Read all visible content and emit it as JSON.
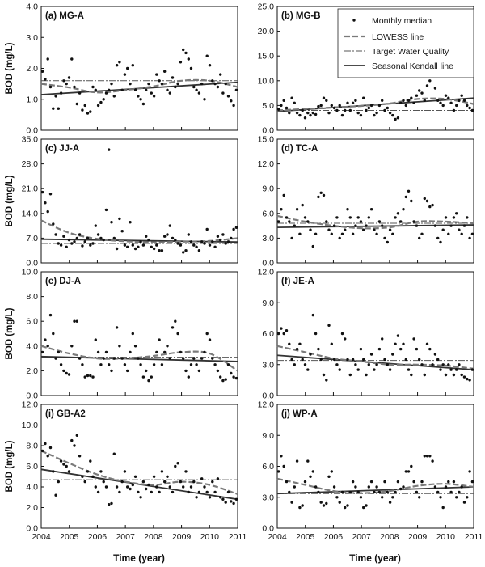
{
  "figure": {
    "xlabel": "Time (year)",
    "ylabel": "BOD (mg/L)",
    "legend": {
      "placement": "top-right of panel (b)",
      "entries": [
        "Monthly median",
        "LOWESS line",
        "Target Water Quality",
        "Seasonal Kendall line"
      ]
    },
    "colors": {
      "median": "#111111",
      "lowess": "#7a7a7a",
      "target": "#555555",
      "kendall": "#333333"
    }
  },
  "chart_data": [
    {
      "type": "scatter",
      "title": "(a) MG-A",
      "xlim": [
        2004,
        2011
      ],
      "ylim": [
        0,
        4
      ],
      "yticks": [
        "0.0",
        "1.0",
        "2.0",
        "3.0",
        "4.0"
      ],
      "xticks": [
        "2004",
        "2005",
        "2006",
        "2007",
        "2008",
        "2009",
        "2010",
        "2011"
      ],
      "target": 1.6,
      "kendall": [
        1.15,
        1.55
      ],
      "lowess": [
        [
          2004,
          1.5
        ],
        [
          2005,
          1.38
        ],
        [
          2006,
          1.22
        ],
        [
          2007,
          1.3
        ],
        [
          2008,
          1.42
        ],
        [
          2009,
          1.6
        ],
        [
          2010,
          1.6
        ],
        [
          2011,
          1.4
        ]
      ],
      "medians": [
        1.9,
        1.65,
        2.3,
        1.4,
        0.7,
        1.1,
        0.7,
        1.2,
        1.6,
        1.5,
        1.7,
        2.3,
        1.4,
        0.85,
        1.2,
        0.65,
        0.8,
        0.55,
        0.6,
        1.4,
        1.3,
        0.8,
        0.9,
        1.0,
        1.2,
        1.3,
        1.5,
        1.1,
        2.1,
        2.2,
        1.3,
        1.8,
        2.0,
        1.5,
        2.1,
        1.3,
        1.1,
        1.0,
        0.85,
        1.3,
        1.5,
        1.2,
        1.1,
        1.8,
        1.6,
        1.5,
        1.9,
        1.3,
        1.2,
        1.7,
        1.4,
        1.5,
        2.2,
        2.6,
        2.5,
        2.3,
        2.0,
        1.4,
        1.3,
        1.2,
        1.5,
        1.0,
        2.4,
        2.1,
        1.6,
        1.5,
        1.4,
        1.8,
        1.2,
        1.5,
        1.1,
        0.95,
        0.8,
        1.3
      ]
    },
    {
      "type": "scatter",
      "title": "(b) MG-B",
      "xlim": [
        2004,
        2011
      ],
      "ylim": [
        0,
        25
      ],
      "yticks": [
        "0.0",
        "5.0",
        "10.0",
        "15.0",
        "20.0",
        "25.0"
      ],
      "xticks": [
        "2004",
        "2005",
        "2006",
        "2007",
        "2008",
        "2009",
        "2010",
        "2011"
      ],
      "target": 4.0,
      "kendall": [
        3.8,
        6.5
      ],
      "lowess": [
        [
          2004,
          4.0
        ],
        [
          2005,
          4.3
        ],
        [
          2006,
          4.6
        ],
        [
          2007,
          4.9
        ],
        [
          2008,
          5.4
        ],
        [
          2009,
          6.3
        ],
        [
          2010,
          6.3
        ],
        [
          2011,
          5.3
        ]
      ],
      "medians": [
        4.2,
        5.0,
        6.0,
        4.5,
        3.5,
        6.5,
        5.5,
        3.5,
        3.0,
        4.0,
        2.5,
        3.5,
        3.0,
        3.5,
        3.2,
        4.8,
        5.0,
        6.5,
        6.0,
        3.5,
        5.0,
        4.5,
        4.0,
        5.0,
        3.0,
        4.0,
        5.5,
        4.0,
        5.5,
        6.0,
        3.5,
        3.0,
        6.5,
        4.0,
        4.5,
        5.0,
        3.0,
        3.5,
        5.0,
        6.0,
        4.0,
        4.5,
        3.5,
        3.0,
        2.2,
        2.5,
        5.5,
        6.0,
        5.0,
        6.0,
        6.5,
        5.5,
        7.0,
        8.0,
        7.5,
        6.0,
        9.0,
        10.0,
        11.5,
        8.5,
        6.0,
        5.5,
        5.0,
        7.0,
        6.5,
        5.5,
        4.0,
        5.0,
        6.0,
        7.0,
        6.0,
        5.0,
        4.5,
        4.0
      ]
    },
    {
      "type": "scatter",
      "title": "(c) JJ-A",
      "xlim": [
        2004,
        2011
      ],
      "ylim": [
        0,
        35
      ],
      "yticks": [
        "0.0",
        "7.0",
        "14.0",
        "21.0",
        "28.0",
        "35.0"
      ],
      "xticks": [
        "2004",
        "2005",
        "2006",
        "2007",
        "2008",
        "2009",
        "2010",
        "2011"
      ],
      "target": 5.5,
      "kendall": [
        6.7,
        5.9
      ],
      "lowess": [
        [
          2004,
          12.0
        ],
        [
          2005,
          8.5
        ],
        [
          2006,
          6.8
        ],
        [
          2007,
          6.1
        ],
        [
          2008,
          5.8
        ],
        [
          2009,
          6.0
        ],
        [
          2010,
          6.2
        ],
        [
          2011,
          7.0
        ]
      ],
      "medians": [
        20.0,
        17.0,
        14.5,
        19.5,
        11.0,
        8.0,
        5.5,
        5.0,
        7.5,
        4.5,
        6.5,
        5.5,
        6.0,
        7.0,
        8.0,
        4.8,
        6.0,
        7.0,
        5.0,
        5.5,
        10.5,
        8.0,
        7.0,
        6.5,
        15.0,
        32.0,
        11.5,
        7.0,
        4.0,
        12.5,
        9.0,
        5.0,
        4.5,
        11.5,
        5.0,
        4.0,
        4.5,
        6.0,
        5.0,
        7.5,
        6.5,
        4.5,
        4.0,
        5.0,
        3.5,
        3.5,
        7.5,
        8.0,
        10.5,
        7.0,
        6.5,
        5.5,
        5.0,
        3.0,
        3.5,
        8.0,
        6.0,
        5.0,
        4.5,
        3.5,
        6.0,
        5.5,
        9.5,
        5.0,
        6.0,
        4.5,
        7.5,
        6.5,
        8.0,
        5.5,
        6.0,
        7.0,
        9.5,
        10.0
      ]
    },
    {
      "type": "scatter",
      "title": "(d) TC-A",
      "xlim": [
        2004,
        2011
      ],
      "ylim": [
        0,
        15
      ],
      "yticks": [
        "0.0",
        "3.0",
        "6.0",
        "9.0",
        "12.0",
        "15.0"
      ],
      "xticks": [
        "2004",
        "2005",
        "2006",
        "2007",
        "2008",
        "2009",
        "2010",
        "2011"
      ],
      "target": 4.8,
      "kendall": [
        4.3,
        4.6
      ],
      "lowess": [
        [
          2004,
          5.7
        ],
        [
          2005,
          5.0
        ],
        [
          2006,
          4.5
        ],
        [
          2007,
          4.2
        ],
        [
          2008,
          4.3
        ],
        [
          2009,
          5.0
        ],
        [
          2010,
          5.0
        ],
        [
          2011,
          4.8
        ]
      ],
      "medians": [
        5.0,
        6.5,
        8.2,
        5.5,
        5.0,
        3.0,
        4.5,
        6.5,
        3.5,
        7.0,
        5.5,
        5.0,
        4.0,
        2.0,
        3.5,
        8.0,
        8.5,
        8.2,
        5.0,
        4.0,
        3.5,
        4.5,
        5.5,
        3.0,
        3.5,
        4.0,
        6.5,
        5.5,
        3.5,
        4.5,
        5.5,
        5.0,
        4.0,
        4.5,
        5.5,
        6.5,
        4.0,
        3.5,
        5.0,
        4.5,
        3.0,
        2.5,
        4.0,
        3.5,
        5.5,
        6.0,
        5.0,
        6.5,
        8.0,
        8.7,
        7.5,
        5.0,
        4.5,
        3.0,
        3.5,
        7.8,
        7.5,
        6.8,
        7.0,
        4.5,
        3.0,
        2.5,
        4.0,
        5.5,
        3.5,
        4.5,
        5.5,
        6.0,
        4.0,
        3.5,
        4.5,
        5.5,
        3.0,
        3.5
      ]
    },
    {
      "type": "scatter",
      "title": "(e) DJ-A",
      "xlim": [
        2004,
        2011
      ],
      "ylim": [
        0,
        10
      ],
      "yticks": [
        "0.0",
        "2.0",
        "4.0",
        "6.0",
        "8.0",
        "10.0"
      ],
      "xticks": [
        "2004",
        "2005",
        "2006",
        "2007",
        "2008",
        "2009",
        "2010",
        "2011"
      ],
      "target": 3.1,
      "kendall": [
        3.15,
        2.75
      ],
      "lowess": [
        [
          2004,
          4.0
        ],
        [
          2005,
          3.4
        ],
        [
          2006,
          3.0
        ],
        [
          2007,
          3.0
        ],
        [
          2008,
          3.2
        ],
        [
          2009,
          3.5
        ],
        [
          2010,
          3.4
        ],
        [
          2011,
          2.0
        ]
      ],
      "medians": [
        3.5,
        4.5,
        4.0,
        6.5,
        5.0,
        3.0,
        3.5,
        2.5,
        2.0,
        1.8,
        1.7,
        4.0,
        6.0,
        6.0,
        3.0,
        2.5,
        1.5,
        1.6,
        1.6,
        1.5,
        4.5,
        3.5,
        2.5,
        3.0,
        3.5,
        2.5,
        2.0,
        3.0,
        5.5,
        4.0,
        3.0,
        2.5,
        2.0,
        3.5,
        5.0,
        4.0,
        3.0,
        2.5,
        1.5,
        2.0,
        1.2,
        1.5,
        2.5,
        3.5,
        4.5,
        2.5,
        3.5,
        4.0,
        3.0,
        5.5,
        6.0,
        5.0,
        3.5,
        3.0,
        2.0,
        1.5,
        2.5,
        3.0,
        2.5,
        2.0,
        3.0,
        3.5,
        5.0,
        4.5,
        3.0,
        2.5,
        2.0,
        1.5,
        1.2,
        1.3,
        2.5,
        1.8,
        1.5,
        1.4
      ]
    },
    {
      "type": "scatter",
      "title": "(f) JE-A",
      "xlim": [
        2004,
        2011
      ],
      "ylim": [
        0,
        12
      ],
      "yticks": [
        "0.0",
        "3.0",
        "6.0",
        "9.0",
        "12.0"
      ],
      "xticks": [
        "2004",
        "2005",
        "2006",
        "2007",
        "2008",
        "2009",
        "2010",
        "2011"
      ],
      "target": 3.4,
      "kendall": [
        3.9,
        2.5
      ],
      "lowess": [
        [
          2004,
          4.8
        ],
        [
          2005,
          4.2
        ],
        [
          2006,
          3.6
        ],
        [
          2007,
          3.3
        ],
        [
          2008,
          3.0
        ],
        [
          2009,
          3.0
        ],
        [
          2010,
          2.9
        ],
        [
          2011,
          2.6
        ]
      ],
      "medians": [
        6.0,
        6.5,
        6.0,
        6.3,
        5.0,
        3.5,
        3.0,
        4.5,
        5.0,
        3.5,
        3.0,
        2.5,
        4.0,
        7.8,
        6.0,
        4.5,
        3.5,
        2.0,
        1.5,
        6.8,
        5.0,
        3.5,
        3.0,
        2.5,
        6.0,
        5.5,
        3.5,
        2.0,
        3.5,
        3.0,
        2.5,
        4.5,
        3.5,
        2.0,
        3.0,
        4.0,
        2.5,
        3.0,
        4.5,
        5.5,
        3.5,
        3.0,
        2.5,
        4.0,
        5.0,
        5.8,
        4.5,
        5.0,
        3.5,
        2.5,
        2.0,
        5.5,
        4.5,
        3.5,
        3.0,
        2.0,
        5.0,
        4.5,
        3.0,
        4.0,
        3.5,
        2.5,
        3.0,
        2.0,
        3.0,
        2.5,
        2.0,
        2.5,
        3.0,
        2.0,
        1.8,
        1.6,
        1.5,
        2.5
      ]
    },
    {
      "type": "scatter",
      "title": "(i) GB-A2",
      "xlim": [
        2004,
        2011
      ],
      "ylim": [
        0,
        12
      ],
      "yticks": [
        "0.0",
        "2.0",
        "4.0",
        "6.0",
        "8.0",
        "10.0",
        "12.0"
      ],
      "xticks": [
        "2004",
        "2005",
        "2006",
        "2007",
        "2008",
        "2009",
        "2010",
        "2011"
      ],
      "target": 4.7,
      "kendall": [
        5.7,
        2.8
      ],
      "lowess": [
        [
          2004,
          7.5
        ],
        [
          2005,
          6.3
        ],
        [
          2006,
          5.2
        ],
        [
          2007,
          4.5
        ],
        [
          2008,
          4.2
        ],
        [
          2009,
          4.5
        ],
        [
          2010,
          4.2
        ],
        [
          2011,
          3.3
        ]
      ],
      "medians": [
        7.5,
        8.2,
        7.0,
        7.8,
        5.5,
        3.2,
        4.5,
        6.5,
        6.2,
        6.0,
        5.5,
        8.5,
        8.0,
        9.0,
        7.0,
        5.0,
        4.5,
        5.5,
        6.5,
        5.0,
        4.0,
        3.5,
        5.5,
        4.5,
        4.0,
        2.3,
        2.4,
        7.2,
        4.0,
        3.5,
        4.5,
        5.5,
        4.0,
        3.8,
        4.2,
        5.0,
        3.5,
        3.0,
        4.5,
        3.8,
        4.2,
        3.5,
        5.0,
        4.0,
        3.5,
        5.5,
        4.5,
        5.0,
        4.0,
        3.5,
        6.0,
        6.3,
        4.5,
        4.0,
        5.5,
        3.5,
        4.0,
        4.5,
        3.0,
        3.5,
        4.8,
        4.0,
        3.5,
        3.0,
        4.5,
        3.5,
        4.8,
        3.0,
        2.8,
        2.5,
        3.5,
        2.6,
        2.4,
        2.8
      ]
    },
    {
      "type": "scatter",
      "title": "(j) WP-A",
      "xlim": [
        2004,
        2011
      ],
      "ylim": [
        0,
        12
      ],
      "yticks": [
        "0.0",
        "3.0",
        "6.0",
        "9.0",
        "12.0"
      ],
      "xticks": [
        "2004",
        "2005",
        "2006",
        "2007",
        "2008",
        "2009",
        "2010",
        "2011"
      ],
      "target": 3.35,
      "kendall": [
        3.35,
        4.0
      ],
      "lowess": [
        [
          2004,
          4.8
        ],
        [
          2005,
          4.2
        ],
        [
          2006,
          3.6
        ],
        [
          2007,
          3.4
        ],
        [
          2008,
          3.6
        ],
        [
          2009,
          4.1
        ],
        [
          2010,
          4.3
        ],
        [
          2011,
          4.0
        ]
      ],
      "medians": [
        5.5,
        7.0,
        6.0,
        4.5,
        3.5,
        2.5,
        4.0,
        6.5,
        2.0,
        2.2,
        4.5,
        6.5,
        5.0,
        5.5,
        4.0,
        3.5,
        2.5,
        2.2,
        2.4,
        5.0,
        5.5,
        4.0,
        3.0,
        2.5,
        3.5,
        2.0,
        2.2,
        3.5,
        4.5,
        4.0,
        3.5,
        3.0,
        2.0,
        2.2,
        4.0,
        4.5,
        3.5,
        4.0,
        3.5,
        3.0,
        4.5,
        3.5,
        2.5,
        3.0,
        3.5,
        4.5,
        3.8,
        4.0,
        5.5,
        5.5,
        6.0,
        4.5,
        3.5,
        3.0,
        4.5,
        7.0,
        7.0,
        7.0,
        6.5,
        4.0,
        3.5,
        3.0,
        2.0,
        4.0,
        4.5,
        3.5,
        4.5,
        3.0,
        3.5,
        4.0,
        2.5,
        3.0,
        5.5,
        4.5
      ]
    }
  ]
}
